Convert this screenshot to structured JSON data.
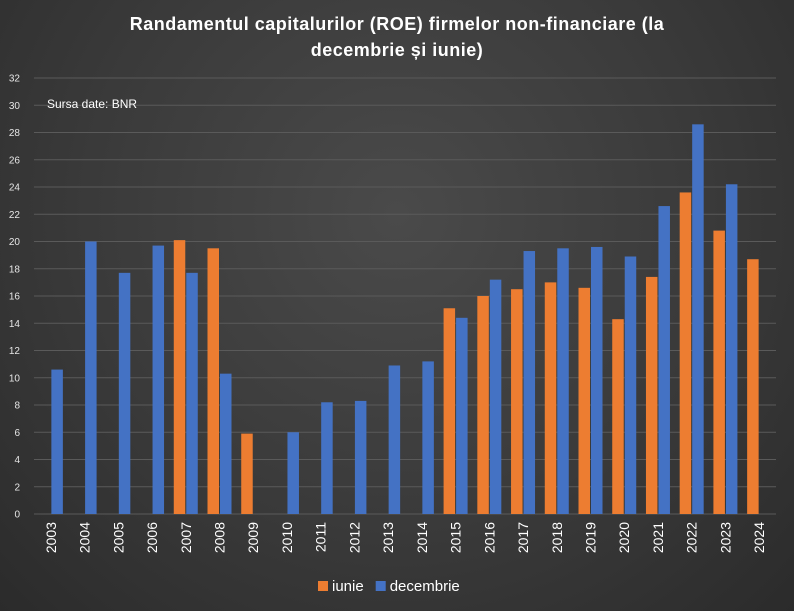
{
  "chart_data": {
    "type": "bar",
    "title_line1": "Randamentul capitalurilor (ROE) firmelor non-financiare (la",
    "title_line2": "decembrie și iunie)",
    "annotation": "Sursa date: BNR",
    "categories": [
      "2003",
      "2004",
      "2005",
      "2006",
      "2007",
      "2008",
      "2009",
      "2010",
      "2011",
      "2012",
      "2013",
      "2014",
      "2015",
      "2016",
      "2017",
      "2018",
      "2019",
      "2020",
      "2021",
      "2022",
      "2023",
      "2024"
    ],
    "series": [
      {
        "name": "iunie",
        "color": "#ed7d31",
        "values": [
          null,
          null,
          null,
          null,
          20.1,
          19.5,
          5.9,
          null,
          null,
          null,
          null,
          null,
          15.1,
          16.0,
          16.5,
          17.0,
          16.6,
          14.3,
          17.4,
          23.6,
          20.8,
          18.7
        ]
      },
      {
        "name": "decembrie",
        "color": "#4472c4",
        "values": [
          10.6,
          20.0,
          17.7,
          19.7,
          17.7,
          10.3,
          null,
          6.0,
          8.2,
          8.3,
          10.9,
          11.2,
          14.4,
          17.2,
          19.3,
          19.5,
          19.6,
          18.9,
          22.6,
          28.6,
          24.2,
          null
        ]
      }
    ],
    "ylim": [
      0,
      32
    ],
    "yticks": [
      0,
      2,
      4,
      6,
      8,
      10,
      12,
      14,
      16,
      18,
      20,
      22,
      24,
      26,
      28,
      30,
      32
    ],
    "grid": true,
    "legend": "bottom"
  }
}
